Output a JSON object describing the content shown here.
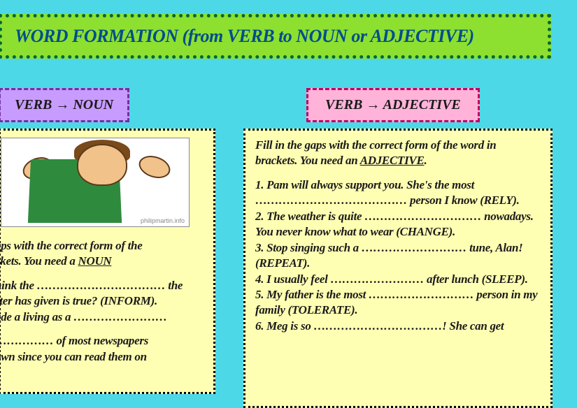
{
  "title": "WORD FORMATION (from VERB to NOUN or ADJECTIVE)",
  "label_noun": "VERB → NOUN",
  "label_adj": "VERB → ADJECTIVE",
  "img_credit": "philipmartin.info",
  "left": {
    "intro_a": "aps with the correct form of the",
    "intro_b": "ckets. You need a ",
    "intro_u": "NOUN",
    "l1": "hink the …………………………… the",
    "l2": "ster has given is true? (INFORM).",
    "l3": "ade a living as a ……………………",
    "l4": "…………… of most newspapers",
    "l5": "own since you can read them on"
  },
  "right": {
    "intro_a": "Fill in the gaps with the correct form of the word in brackets. You need an ",
    "intro_u": "ADJECTIVE",
    "intro_c": ".",
    "r1": "1. Pam will always support you. She's the most ………………………………… person I know (RELY).",
    "r2": "2. The weather is quite ………………………… nowadays. You never know what to wear (CHANGE).",
    "r3": "3. Stop singing such a ……………………… tune, Alan! (REPEAT).",
    "r4": "4. I usually feel …………………… after lunch (SLEEP).",
    "r5": "5. My father is the most ……………………… person in my family (TOLERATE).",
    "r6": "6. Meg is so ……………………………! She can get"
  }
}
